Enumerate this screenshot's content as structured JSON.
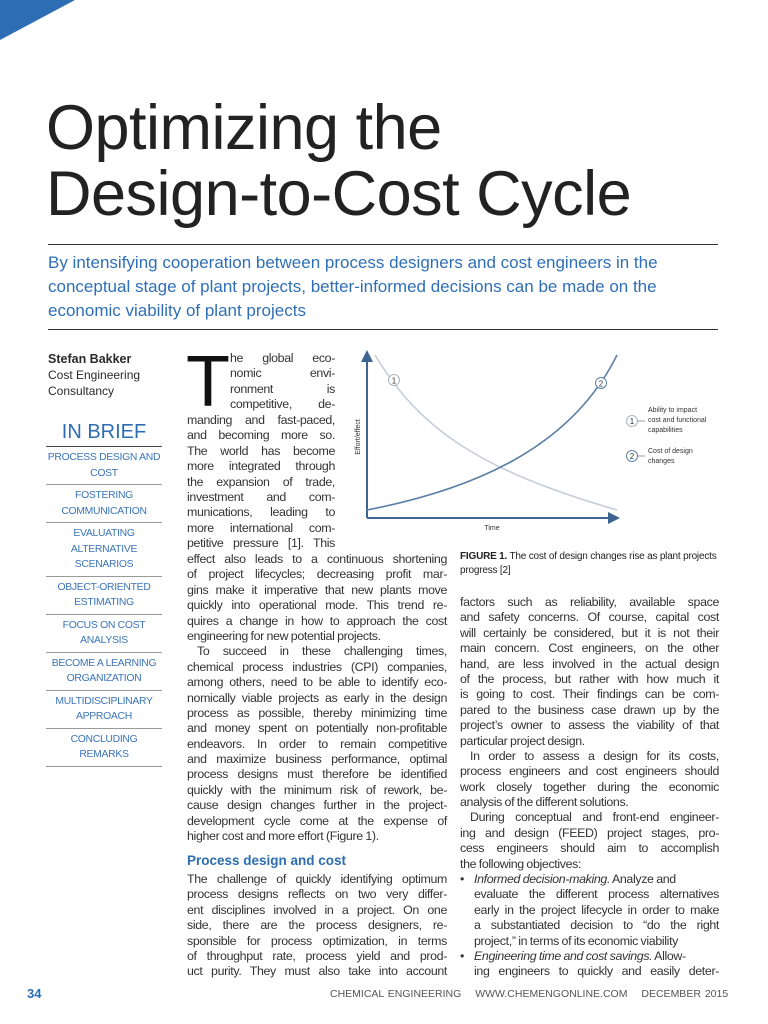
{
  "title": {
    "line1": "Optimizing the",
    "line2": "Design-to-Cost Cycle"
  },
  "deck": "By intensifying cooperation between process designers and cost engineers in the conceptual stage of plant projects, better-informed decisions can be made on the economic viability of plant projects",
  "author": {
    "name": "Stefan Bakker",
    "affiliation_line1": "Cost Engineering",
    "affiliation_line2": "Consultancy"
  },
  "in_brief": {
    "heading": "IN BRIEF",
    "items": [
      "PROCESS DESIGN AND COST",
      "FOSTERING COMMUNICATION",
      "EVALUATING ALTERNATIVE SCENARIOS",
      "OBJECT-ORIENTED ESTIMATING",
      "FOCUS ON COST ANALYSIS",
      "BECOME A LEARNING ORGANIZATION",
      "MULTIDISCIPLINARY APPROACH",
      "CONCLUDING REMARKS"
    ]
  },
  "body": {
    "drop_cap": "T",
    "p1_indented": [
      "he global eco-",
      "nomic envi-",
      "ronment is",
      "competitive, de-"
    ],
    "p1_narrow": [
      "manding and fast-paced,",
      "and becoming more so.",
      "The world has become",
      "more integrated through",
      "the expansion of trade,",
      "investment and com-",
      "munications, leading to",
      "more international com-",
      "petitive pressure [1]. This"
    ],
    "p1_wide": [
      "effect also leads to a continuous shortening",
      "of project lifecycles; decreasing profit mar-",
      "gins make it imperative that new plants move",
      "quickly into operational mode. This trend re-",
      "quires a change in how to approach the cost",
      "engineering for new potential projects."
    ],
    "p2": [
      "To succeed in these challenging times,",
      "chemical process industries (CPI) companies,",
      "among others, need to be able to identify eco-",
      "nomically viable projects as early in the design",
      "process as possible, thereby minimizing time",
      "and money spent on potentially non-profitable",
      "endeavors. In order to remain competitive",
      "and maximize business performance, optimal",
      "process designs must therefore be identified",
      "quickly with the minimum risk of rework, be-",
      "cause design changes further in the project-",
      "development cycle come at the expense of",
      "higher cost and more effort (Figure 1)."
    ],
    "section_heading": "Process design and cost",
    "p3": [
      "The challenge of quickly identifying optimum",
      "process designs reflects on two very differ-",
      "ent disciplines involved in a project. On one",
      "side, there are the process designers, re-",
      "sponsible for process optimization, in terms",
      "of throughput rate, process yield and prod-",
      "uct purity. They must also take into account"
    ],
    "p4": [
      "factors such as reliability, available space",
      "and safety concerns. Of course, capital cost",
      "will certainly be considered, but it is not their",
      "main concern. Cost engineers, on the other",
      "hand, are less involved in the actual design",
      "of the process, but rather with how much it",
      "is going to cost. Their findings can be com-",
      "pared to the business case drawn up by the",
      "project’s owner to assess the viability of that",
      "particular project design."
    ],
    "p5": [
      "In order to assess a design for its costs,",
      "process engineers and cost engineers should",
      "work closely together during the economic",
      "analysis of the different solutions."
    ],
    "p6": [
      "During conceptual and front-end engineer-",
      "ing and design (FEED) project stages, pro-",
      "cess engineers should aim to accomplish",
      "the following objectives:"
    ],
    "bullets": [
      {
        "lead": "Informed decision-making.",
        "first_rest": " Analyze and",
        "lines": [
          "evaluate the different process alternatives",
          "early in the project lifecycle in order to make",
          "a substantiated decision to “do the right",
          "project,” in terms of its economic viability"
        ]
      },
      {
        "lead": "Engineering time and cost savings.",
        "first_rest": " Allow-",
        "lines": [
          "ing engineers to quickly and easily deter-"
        ]
      }
    ]
  },
  "figure": {
    "y_axis_label": "Effort/effect",
    "x_axis_label": "Time",
    "legend": [
      {
        "marker": "1",
        "lines": [
          "Ability to impact",
          "cost and functional",
          "capabilities"
        ],
        "color": "#c5cdd8"
      },
      {
        "marker": "2",
        "lines": [
          "Cost of design",
          "changes"
        ],
        "color": "#5b7fa6"
      }
    ],
    "caption_label": "FIGURE 1.",
    "caption_text": " The cost of design changes rise as plant projects progress [2]",
    "axis_color": "#3d6591"
  },
  "footer": {
    "page_number": "34",
    "magazine": "CHEMICAL ENGINEERING",
    "website": "WWW.CHEMENGONLINE.COM",
    "issue": "DECEMBER 2015"
  },
  "colors": {
    "accent": "#2c6db3",
    "deck": "#2f6fb7"
  }
}
